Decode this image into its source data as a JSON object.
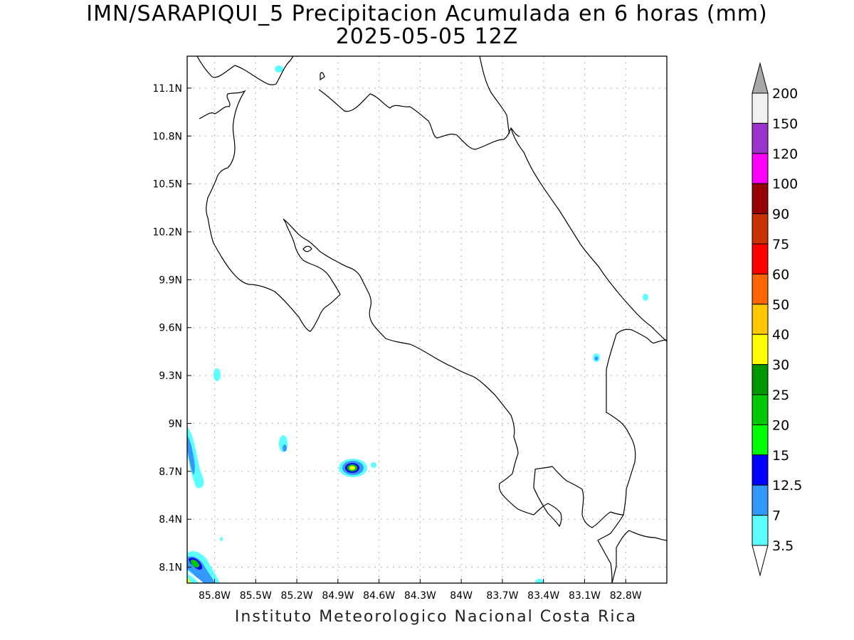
{
  "title": {
    "line1": "IMN/SARAPIQUI_5 Precipitacion Acumulada en 6 horas (mm)",
    "line2": "2025-05-05 12Z"
  },
  "footer": "Instituto Meteorologico Nacional Costa Rica",
  "map": {
    "lon_range": [
      -86.0,
      -82.5
    ],
    "lat_range": [
      8.0,
      11.3
    ],
    "x_ticks": [
      {
        "value": -85.8,
        "label": "85.8W"
      },
      {
        "value": -85.5,
        "label": "85.5W"
      },
      {
        "value": -85.2,
        "label": "85.2W"
      },
      {
        "value": -84.9,
        "label": "84.9W"
      },
      {
        "value": -84.6,
        "label": "84.6W"
      },
      {
        "value": -84.3,
        "label": "84.3W"
      },
      {
        "value": -84.0,
        "label": "84W"
      },
      {
        "value": -83.7,
        "label": "83.7W"
      },
      {
        "value": -83.4,
        "label": "83.4W"
      },
      {
        "value": -83.1,
        "label": "83.1W"
      },
      {
        "value": -82.8,
        "label": "82.8W"
      }
    ],
    "y_ticks": [
      {
        "value": 11.1,
        "label": "11.1N"
      },
      {
        "value": 10.8,
        "label": "10.8N"
      },
      {
        "value": 10.5,
        "label": "10.5N"
      },
      {
        "value": 10.2,
        "label": "10.2N"
      },
      {
        "value": 9.9,
        "label": "9.9N"
      },
      {
        "value": 9.6,
        "label": "9.6N"
      },
      {
        "value": 9.3,
        "label": "9.3N"
      },
      {
        "value": 9.0,
        "label": "9N"
      },
      {
        "value": 8.7,
        "label": "8.7N"
      },
      {
        "value": 8.4,
        "label": "8.4N"
      },
      {
        "value": 8.1,
        "label": "8.1N"
      }
    ],
    "grid": true,
    "units": "mm"
  },
  "colorbar": {
    "labels": [
      "3.5",
      "7",
      "12.5",
      "15",
      "20",
      "25",
      "30",
      "40",
      "50",
      "60",
      "75",
      "90",
      "100",
      "120",
      "150",
      "200"
    ],
    "colors": [
      "#ffffff",
      "#5cffff",
      "#3399ff",
      "#0000ff",
      "#00ff00",
      "#00c800",
      "#009600",
      "#ffff00",
      "#ffc800",
      "#ff6600",
      "#ff0000",
      "#c83200",
      "#960000",
      "#ff00ff",
      "#9933cc",
      "#f2f2f2",
      "#a8a8a8"
    ]
  }
}
